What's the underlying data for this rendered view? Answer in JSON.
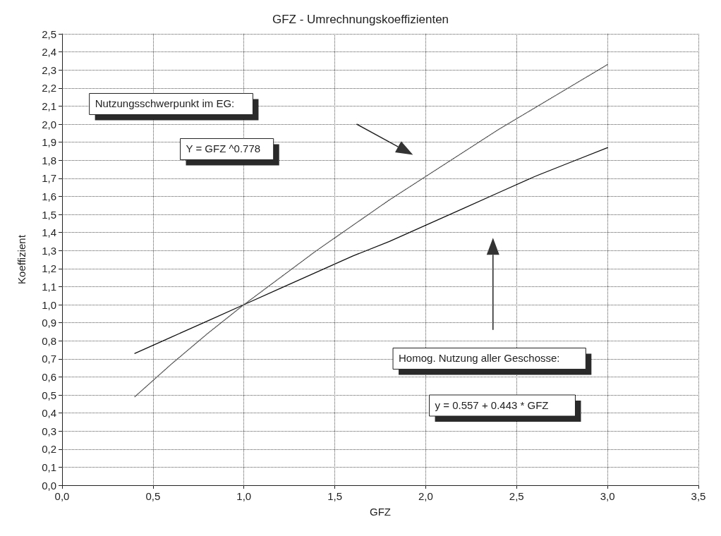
{
  "chart_data": {
    "type": "line",
    "title": "GFZ - Umrechnungskoeffizienten",
    "xlabel": "GFZ",
    "ylabel": "Koeffizient",
    "series": [
      {
        "color": "#111111",
        "line_style": "solid",
        "x": [
          0.4,
          0.6,
          0.8,
          1.0,
          1.2,
          1.4,
          1.6,
          1.8,
          2.0,
          2.2,
          2.4,
          2.6,
          2.8,
          3.0
        ],
        "values": [
          0.73,
          0.82,
          0.91,
          1.0,
          1.09,
          1.18,
          1.27,
          1.35,
          1.44,
          1.53,
          1.62,
          1.71,
          1.79,
          1.87
        ]
      },
      {
        "color": "#555555",
        "line_style": "dotted",
        "x": [
          0.4,
          0.6,
          0.8,
          1.0,
          1.2,
          1.4,
          1.6,
          1.8,
          2.0,
          2.2,
          2.4,
          2.6,
          2.8,
          3.0
        ],
        "values": [
          0.49,
          0.67,
          0.84,
          1.0,
          1.15,
          1.3,
          1.44,
          1.58,
          1.71,
          1.84,
          1.97,
          2.09,
          2.21,
          2.33
        ]
      }
    ],
    "annotations": [
      "Nutzungsschwerpunkt im EG:",
      "Y = GFZ ^0.778",
      "Homog. Nutzung aller Geschosse:",
      "y = 0.557 + 0.443 * GFZ"
    ],
    "xlim": [
      0,
      3.5
    ],
    "xticks": [
      {
        "value": 0,
        "label": "0,0"
      },
      {
        "value": 0.5,
        "label": "0,5"
      },
      {
        "value": 1,
        "label": "1,0"
      },
      {
        "value": 1.5,
        "label": "1,5"
      },
      {
        "value": 2,
        "label": "2,0"
      },
      {
        "value": 2.5,
        "label": "2,5"
      },
      {
        "value": 3,
        "label": "3,0"
      },
      {
        "value": 3.5,
        "label": "3,5"
      }
    ],
    "ylim": [
      0,
      2.5
    ],
    "yticks": [
      {
        "value": 0,
        "label": "0,0"
      },
      {
        "value": 0.1,
        "label": "0,1"
      },
      {
        "value": 0.2,
        "label": "0,2"
      },
      {
        "value": 0.3,
        "label": "0,3"
      },
      {
        "value": 0.4,
        "label": "0,4"
      },
      {
        "value": 0.5,
        "label": "0,5"
      },
      {
        "value": 0.6,
        "label": "0,6"
      },
      {
        "value": 0.7,
        "label": "0,7"
      },
      {
        "value": 0.8,
        "label": "0,8"
      },
      {
        "value": 0.9,
        "label": "0,9"
      },
      {
        "value": 1.0,
        "label": "1,0"
      },
      {
        "value": 1.1,
        "label": "1,1"
      },
      {
        "value": 1.2,
        "label": "1,2"
      },
      {
        "value": 1.3,
        "label": "1,3"
      },
      {
        "value": 1.4,
        "label": "1,4"
      },
      {
        "value": 1.5,
        "label": "1,5"
      },
      {
        "value": 1.6,
        "label": "1,6"
      },
      {
        "value": 1.7,
        "label": "1,7"
      },
      {
        "value": 1.8,
        "label": "1,8"
      },
      {
        "value": 1.9,
        "label": "1,9"
      },
      {
        "value": 2.0,
        "label": "2,0"
      },
      {
        "value": 2.1,
        "label": "2,1"
      },
      {
        "value": 2.2,
        "label": "2,2"
      },
      {
        "value": 2.3,
        "label": "2,3"
      },
      {
        "value": 2.4,
        "label": "2,4"
      },
      {
        "value": 2.5,
        "label": "2,5"
      }
    ],
    "grid": true,
    "marker": "none"
  }
}
